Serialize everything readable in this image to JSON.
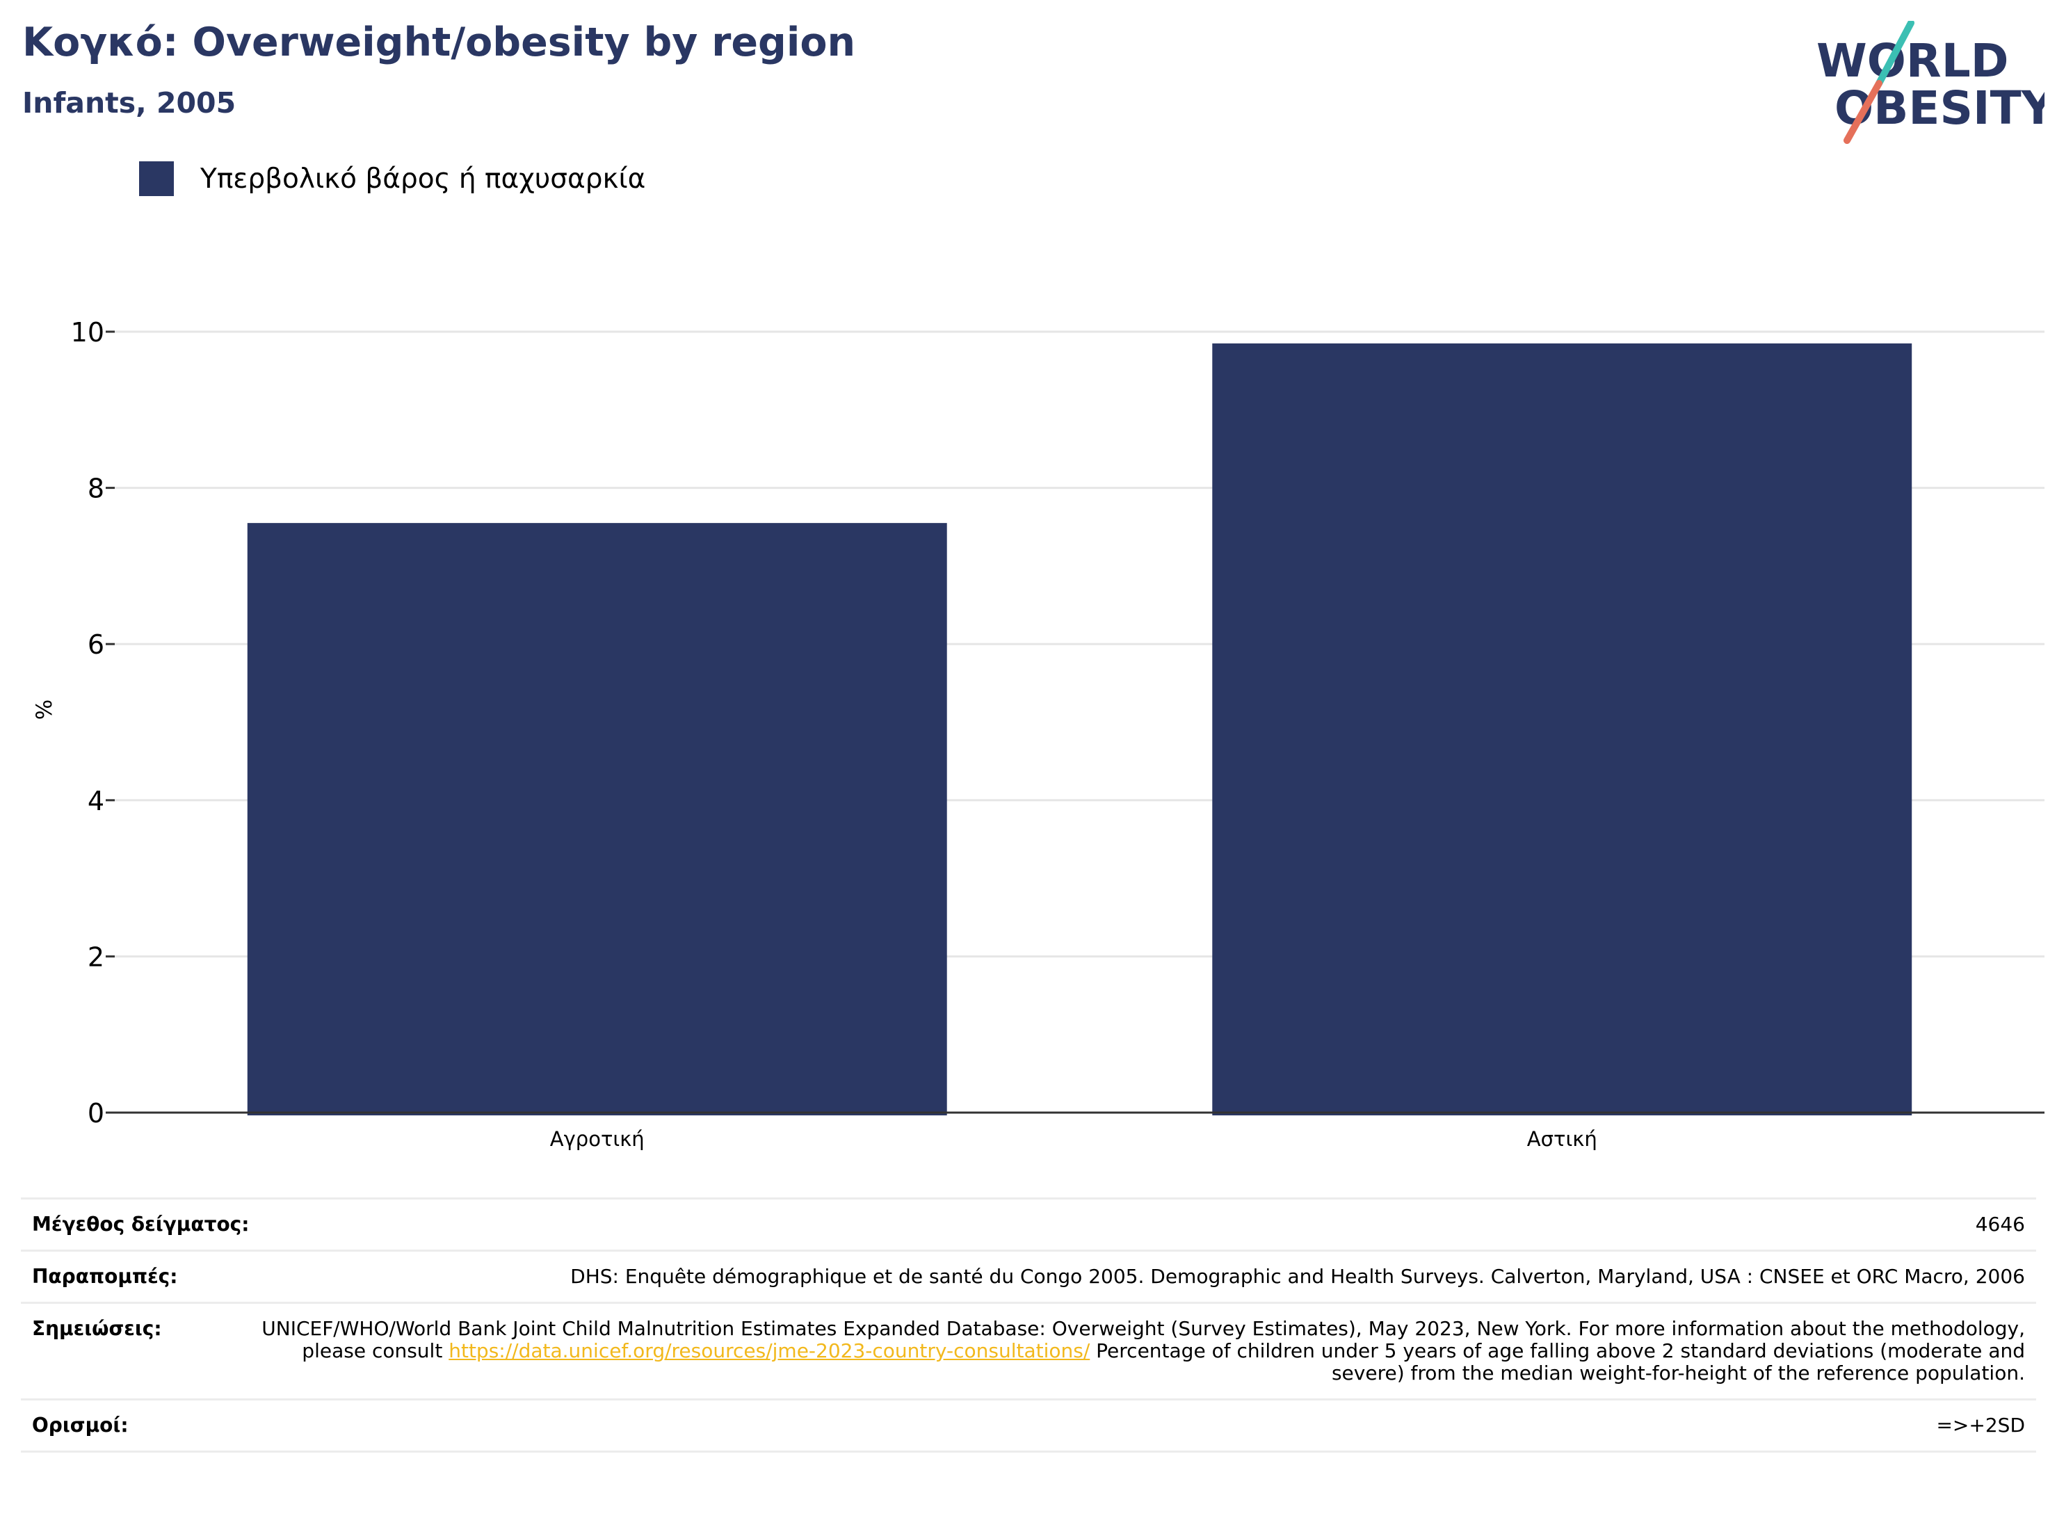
{
  "header": {
    "title": "Κογκό: Overweight/obesity by region",
    "subtitle": "Infants, 2005"
  },
  "logo": {
    "line1": "WORLD",
    "line2": "OBESITY",
    "colors": {
      "text": "#2a3763",
      "teal": "#3bbfb3",
      "coral": "#e5705a"
    }
  },
  "colors": {
    "bar": "#2a3763",
    "grid": "#e6e6e6",
    "axis": "#333333",
    "link": "#f2b81c"
  },
  "chart_data": {
    "type": "bar",
    "categories": [
      "Αγροτική",
      "Αστική"
    ],
    "series": [
      {
        "name": "Υπερβολικό βάρος ή παχυσαρκία",
        "values": [
          7.55,
          9.85
        ]
      }
    ],
    "ylabel": "%",
    "ylim": [
      0,
      10
    ],
    "yticks": [
      0,
      2,
      4,
      6,
      8,
      10
    ],
    "grid": true,
    "legend_position": "top-left"
  },
  "meta": {
    "sample_size": {
      "label": "Μέγεθος δείγματος:",
      "value": "4646"
    },
    "references": {
      "label": "Παραπομπές:",
      "value": "DHS: Enquête démographique et de santé du Congo 2005. Demographic and Health Surveys. Calverton, Maryland, USA : CNSEE et ORC Macro, 2006"
    },
    "notes": {
      "label": "Σημειώσεις:",
      "text_before": "UNICEF/WHO/World Bank Joint Child Malnutrition Estimates Expanded Database: Overweight (Survey Estimates), May 2023, New York. For more information about the methodology, please consult ",
      "link": "https://data.unicef.org/resources/jme-2023-country-consultations/",
      "text_after": " Percentage of children under 5 years of age falling above 2 standard deviations (moderate and severe) from the median weight-for-height of the reference population."
    },
    "definitions": {
      "label": "Ορισμοί:",
      "value": "=>+2SD"
    }
  }
}
